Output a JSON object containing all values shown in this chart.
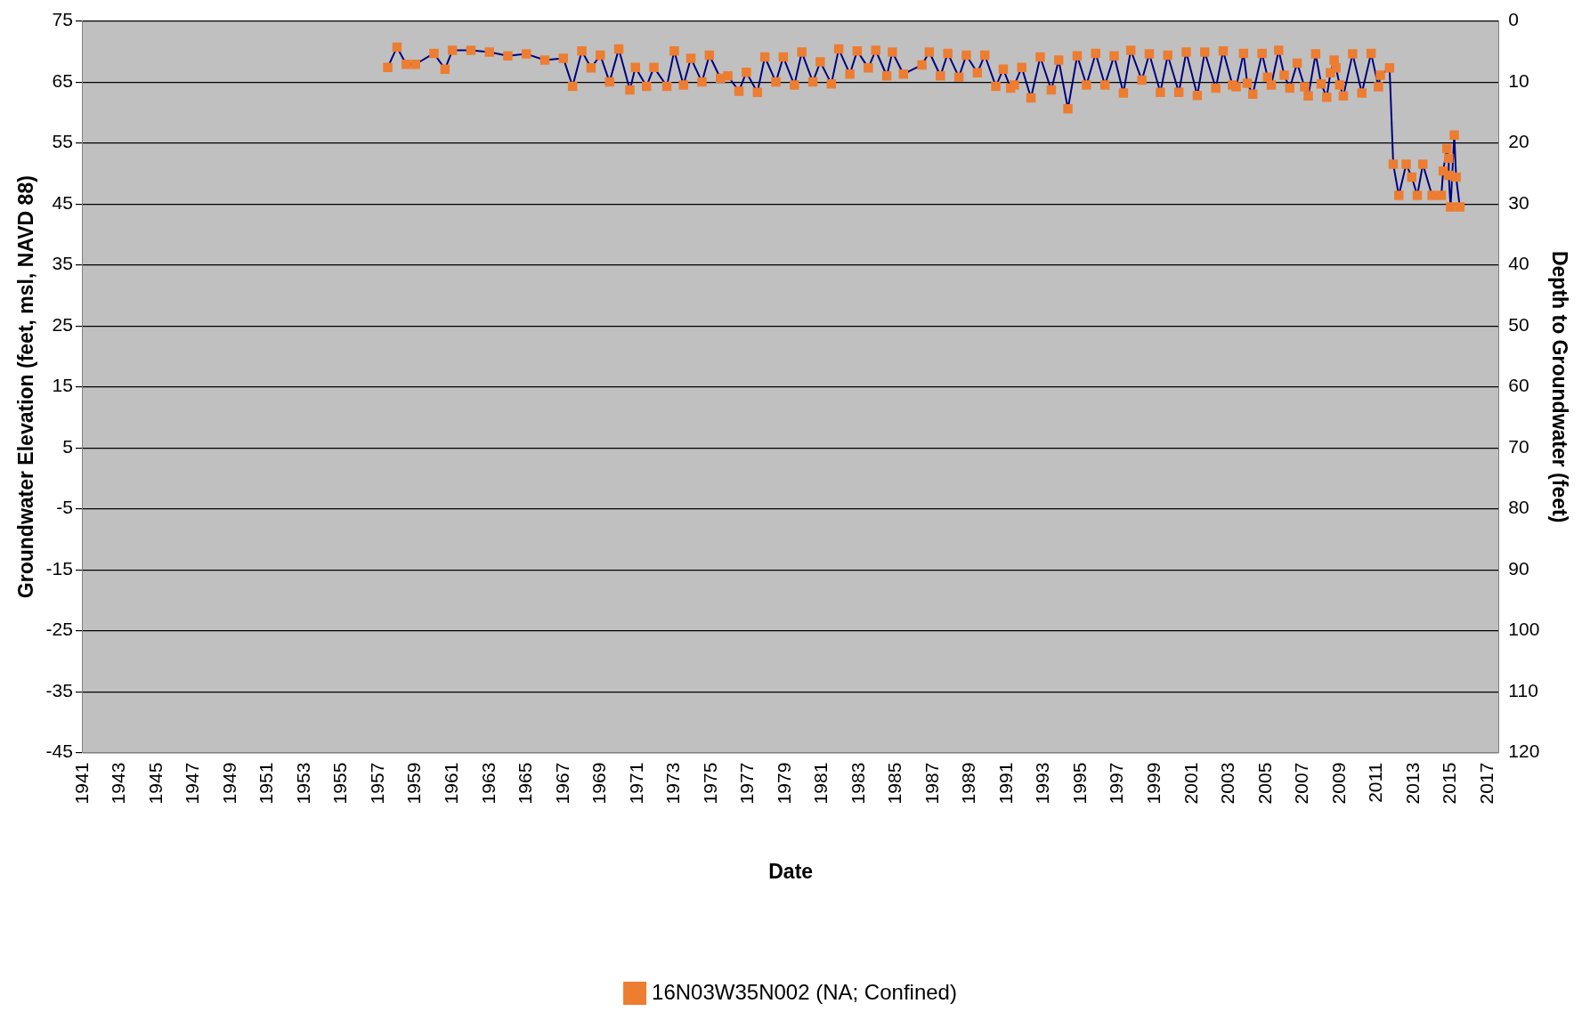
{
  "chart_data": {
    "type": "line",
    "xlabel": "Date",
    "ylabel": "Groundwater Elevation (feet, msl, NAVD 88)",
    "y2label": "Depth to Groundwater (feet)",
    "xlim": [
      1941,
      2017.6
    ],
    "xticks": [
      1941,
      1943,
      1945,
      1947,
      1949,
      1951,
      1953,
      1955,
      1957,
      1959,
      1961,
      1963,
      1965,
      1967,
      1969,
      1971,
      1973,
      1975,
      1977,
      1979,
      1981,
      1983,
      1985,
      1987,
      1989,
      1991,
      1993,
      1995,
      1997,
      1999,
      2001,
      2003,
      2005,
      2007,
      2009,
      2011,
      2013,
      2015,
      2017
    ],
    "ylim": [
      -45,
      75
    ],
    "yticks": [
      75,
      65,
      55,
      45,
      35,
      25,
      15,
      5,
      -5,
      -15,
      -25,
      -35,
      -45
    ],
    "y2lim": [
      120,
      0
    ],
    "y2ticks": [
      0,
      10,
      20,
      30,
      40,
      50,
      60,
      70,
      80,
      90,
      100,
      110,
      120
    ],
    "grid": "y",
    "legend": "bottom",
    "marker": "square",
    "line_style": "solid",
    "series": [
      {
        "name": "16N03W35N002 (NA; Confined)",
        "color": "#ed7d31",
        "x": [
          1957.5,
          1958.0,
          1958.5,
          1959.0,
          1960.0,
          1960.6,
          1961.0,
          1962.0,
          1963.0,
          1964.0,
          1965.0,
          1966.0,
          1967.0,
          1967.5,
          1968.0,
          1968.5,
          1969.0,
          1969.5,
          1970.0,
          1970.6,
          1970.9,
          1971.5,
          1971.9,
          1972.6,
          1973.0,
          1973.5,
          1973.9,
          1974.5,
          1974.9,
          1975.5,
          1975.9,
          1976.5,
          1976.9,
          1977.5,
          1977.9,
          1978.5,
          1978.9,
          1979.5,
          1979.9,
          1980.5,
          1980.9,
          1981.5,
          1981.9,
          1982.5,
          1982.9,
          1983.5,
          1983.9,
          1984.5,
          1984.8,
          1985.4,
          1986.4,
          1986.8,
          1987.4,
          1987.8,
          1988.4,
          1988.8,
          1989.4,
          1989.8,
          1990.4,
          1990.8,
          1991.2,
          1991.4,
          1991.8,
          1992.3,
          1992.8,
          1993.4,
          1993.8,
          1994.3,
          1994.8,
          1995.3,
          1995.8,
          1996.3,
          1996.8,
          1997.3,
          1997.7,
          1998.3,
          1998.7,
          1999.3,
          1999.7,
          2000.3,
          2000.7,
          2001.3,
          2001.7,
          2002.3,
          2002.7,
          2003.2,
          2003.4,
          2003.8,
          2004.0,
          2004.3,
          2004.8,
          2005.1,
          2005.3,
          2005.7,
          2006.0,
          2006.3,
          2006.7,
          2007.1,
          2007.3,
          2007.7,
          2008.0,
          2008.3,
          2008.5,
          2008.7,
          2008.8,
          2009.0,
          2009.2,
          2009.7,
          2010.2,
          2010.7,
          2011.1,
          2011.2,
          2011.7,
          2011.9,
          2012.2,
          2012.6,
          2012.9,
          2013.2,
          2013.5,
          2014.0,
          2014.5,
          2014.6,
          2014.8,
          2014.9,
          2014.9,
          2015.0,
          2015.2,
          2015.3,
          2015.5
        ],
        "values": [
          67.4,
          70.7,
          67.9,
          67.9,
          69.7,
          67.1,
          70.2,
          70.2,
          69.9,
          69.3,
          69.6,
          68.6,
          68.9,
          64.3,
          70.1,
          67.3,
          69.4,
          65.0,
          70.4,
          63.7,
          67.4,
          64.3,
          67.4,
          64.3,
          70.1,
          64.5,
          68.9,
          65.0,
          69.4,
          65.6,
          66.0,
          63.5,
          66.6,
          63.3,
          69.1,
          65.0,
          69.1,
          64.5,
          69.9,
          65.0,
          68.3,
          64.7,
          70.4,
          66.3,
          70.1,
          67.3,
          70.2,
          66.0,
          69.9,
          66.3,
          67.8,
          69.9,
          66.0,
          69.7,
          65.8,
          69.4,
          66.5,
          69.4,
          64.3,
          67.1,
          64.0,
          64.5,
          67.4,
          62.4,
          69.1,
          63.7,
          68.6,
          60.6,
          69.3,
          64.5,
          69.7,
          64.5,
          69.3,
          63.2,
          70.2,
          65.3,
          69.6,
          63.3,
          69.4,
          63.3,
          69.9,
          62.8,
          69.9,
          64.0,
          70.1,
          64.5,
          64.2,
          69.7,
          64.8,
          63.0,
          69.7,
          65.8,
          64.5,
          70.2,
          66.1,
          64.0,
          68.1,
          64.2,
          62.7,
          69.6,
          64.7,
          62.5,
          66.5,
          68.6,
          67.3,
          64.5,
          62.7,
          69.6,
          63.2,
          69.7,
          64.2,
          66.1,
          67.3,
          51.5,
          46.4,
          51.5,
          49.4,
          46.4,
          51.5,
          46.4,
          46.4,
          50.4,
          54.1,
          52.5,
          49.7,
          44.5,
          56.3,
          49.4,
          44.5
        ]
      }
    ]
  }
}
